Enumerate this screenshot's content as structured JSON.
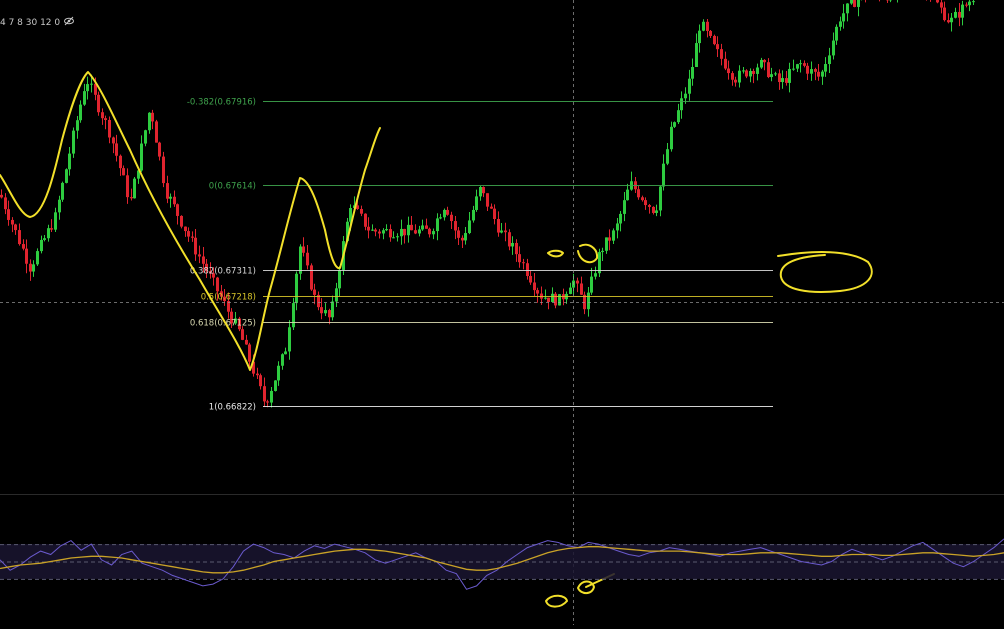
{
  "header": {
    "intervals_text": "4 7 8 30 12 0"
  },
  "colors": {
    "background": "#000000",
    "bull": "#2ecc40",
    "bear": "#e0242f",
    "fib_zero": "#3fa34d",
    "fib_382": "#d8d8d8",
    "fib_50": "#d4c229",
    "fib_618": "#d8d8b0",
    "fib_one": "#e8e8e8",
    "drawing": "#f2e02a",
    "rsi": "#6a5acd",
    "rsi_ma": "#c9a227",
    "rsi_band": "#1a1530"
  },
  "chart_data": [
    {
      "type": "candlestick",
      "title": "",
      "fib_levels": [
        {
          "label": "-0.382(0.67916)",
          "ratio": -0.382,
          "price": 0.67916
        },
        {
          "label": "0(0.67614)",
          "ratio": 0,
          "price": 0.67614
        },
        {
          "label": "0.382(0.67311)",
          "ratio": 0.382,
          "price": 0.67311
        },
        {
          "label": "0.5(0.67218)",
          "ratio": 0.5,
          "price": 0.67218
        },
        {
          "label": "0.618(0.67125)",
          "ratio": 0.618,
          "price": 0.67125
        },
        {
          "label": "1(0.66822)",
          "ratio": 1,
          "price": 0.66822
        }
      ],
      "price_path": [
        [
          0,
          0.6758
        ],
        [
          30,
          0.6732
        ],
        [
          55,
          0.675
        ],
        [
          86,
          0.68
        ],
        [
          110,
          0.678
        ],
        [
          130,
          0.6755
        ],
        [
          150,
          0.679
        ],
        [
          165,
          0.676
        ],
        [
          190,
          0.6742
        ],
        [
          215,
          0.6725
        ],
        [
          240,
          0.6708
        ],
        [
          265,
          0.6683
        ],
        [
          285,
          0.6702
        ],
        [
          300,
          0.674
        ],
        [
          315,
          0.672
        ],
        [
          330,
          0.6713
        ],
        [
          350,
          0.6755
        ],
        [
          370,
          0.6745
        ],
        [
          400,
          0.6745
        ],
        [
          430,
          0.6745
        ],
        [
          445,
          0.6755
        ],
        [
          460,
          0.674
        ],
        [
          480,
          0.676
        ],
        [
          500,
          0.6745
        ],
        [
          520,
          0.6735
        ],
        [
          540,
          0.6722
        ],
        [
          560,
          0.672
        ],
        [
          572,
          0.6728
        ],
        [
          585,
          0.6718
        ],
        [
          600,
          0.6738
        ],
        [
          615,
          0.6745
        ],
        [
          630,
          0.6762
        ],
        [
          655,
          0.6752
        ],
        [
          670,
          0.678
        ],
        [
          690,
          0.68
        ],
        [
          700,
          0.682
        ],
        [
          715,
          0.681
        ],
        [
          735,
          0.68
        ],
        [
          760,
          0.6805
        ],
        [
          780,
          0.6798
        ],
        [
          800,
          0.6805
        ],
        [
          820,
          0.68
        ],
        [
          840,
          0.6822
        ],
        [
          860,
          0.683
        ],
        [
          890,
          0.683
        ],
        [
          920,
          0.6835
        ],
        [
          950,
          0.682
        ],
        [
          975,
          0.683
        ]
      ],
      "ylim": [
        0.6652,
        0.6828
      ],
      "grid": false,
      "legend": "none"
    },
    {
      "type": "line",
      "title": "",
      "ylim": [
        0,
        100
      ],
      "reference_lines": [
        70,
        50,
        30
      ],
      "series": [
        {
          "values": [
            52,
            40,
            46,
            55,
            62,
            58,
            68,
            74,
            63,
            70,
            52,
            46,
            58,
            62,
            48,
            44,
            40,
            34,
            30,
            26,
            22,
            24,
            30,
            44,
            62,
            70,
            66,
            60,
            58,
            54,
            62,
            68,
            65,
            70,
            67,
            64,
            60,
            52,
            48,
            52,
            56,
            60,
            54,
            50,
            40,
            36,
            18,
            22,
            34,
            40,
            50,
            58,
            66,
            70,
            74,
            72,
            68,
            66,
            72,
            70,
            66,
            62,
            58,
            56,
            60,
            62,
            66,
            64,
            62,
            60,
            58,
            56,
            60,
            62,
            64,
            66,
            62,
            58,
            54,
            50,
            48,
            46,
            50,
            58,
            64,
            60,
            56,
            52,
            56,
            62,
            68,
            72,
            64,
            56,
            48,
            44,
            50,
            58,
            66,
            76
          ]
        },
        {
          "values": [
            42,
            44,
            46,
            47,
            48,
            50,
            52,
            54,
            55,
            56,
            56,
            55,
            54,
            52,
            50,
            48,
            46,
            44,
            42,
            40,
            38,
            37,
            37,
            38,
            40,
            43,
            46,
            50,
            52,
            54,
            56,
            58,
            60,
            62,
            63,
            64,
            64,
            63,
            62,
            60,
            58,
            56,
            54,
            50,
            47,
            44,
            41,
            40,
            40,
            42,
            45,
            48,
            52,
            56,
            60,
            63,
            65,
            66,
            67,
            67,
            66,
            65,
            64,
            63,
            62,
            62,
            62,
            62,
            61,
            60,
            59,
            58,
            58,
            58,
            59,
            60,
            60,
            60,
            59,
            58,
            57,
            56,
            56,
            57,
            58,
            58,
            58,
            57,
            57,
            58,
            59,
            60,
            60,
            59,
            58,
            57,
            56,
            57,
            58,
            60
          ]
        }
      ]
    }
  ]
}
